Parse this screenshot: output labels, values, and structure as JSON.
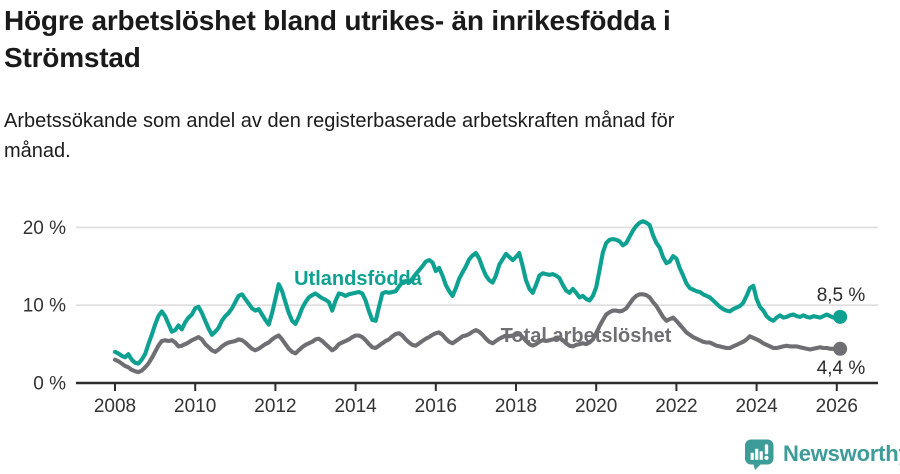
{
  "page": {
    "background": "#ffffff"
  },
  "header": {
    "title": "Högre arbetslöshet bland utrikes- än inrikesfödda i Strömstad",
    "title_lines": [
      "Högre arbetslöshet bland utrikes- än inrikesfödda i",
      "Strömstad"
    ],
    "subtitle": "Arbetssökande som andel av den registerbaserade arbetskraften månad för månad.",
    "subtitle_lines": [
      "Arbetssökande som andel av den registerbaserade arbetskraften månad för",
      "månad."
    ]
  },
  "chart_data": {
    "type": "line",
    "title": "Högre arbetslöshet bland utrikes- än inrikesfödda i Strömstad",
    "subtitle": "Arbetssökande som andel av den registerbaserade arbetskraften månad för månad.",
    "x_unit": "months",
    "x_start": 2008.0,
    "x_step": 0.08333,
    "x_end": 2026.083,
    "xlim": [
      2007.0,
      2027.0
    ],
    "ylim": [
      0,
      24
    ],
    "grid": "horizontal-only",
    "xticks": [
      2008,
      2010,
      2012,
      2014,
      2016,
      2018,
      2020,
      2022,
      2024,
      2026
    ],
    "xtick_labels": [
      "2008",
      "2010",
      "2012",
      "2014",
      "2016",
      "2018",
      "2020",
      "2022",
      "2024",
      "2026"
    ],
    "yticks": [
      0,
      10,
      20
    ],
    "ytick_labels": [
      "0 %",
      "10 %",
      "20 %"
    ],
    "axis_color": "#2d2d2d",
    "grid_color": "#dedede",
    "tick_label_color": "#333333",
    "end_label_color": "#2b2b2b",
    "series": [
      {
        "name": "Utlandsfödda",
        "color": "#0ea192",
        "end_label": "8,5 %",
        "end_value": 8.5,
        "values": [
          4.0,
          3.8,
          3.5,
          3.3,
          3.7,
          3.0,
          2.6,
          2.5,
          3.0,
          3.7,
          5.0,
          6.2,
          7.5,
          8.6,
          9.2,
          8.6,
          7.6,
          6.6,
          6.8,
          7.4,
          6.9,
          7.8,
          8.4,
          8.8,
          9.6,
          9.8,
          9.0,
          8.0,
          7.0,
          6.2,
          6.6,
          7.1,
          8.0,
          8.6,
          9.0,
          9.6,
          10.4,
          11.2,
          11.4,
          10.8,
          10.2,
          9.6,
          9.3,
          9.5,
          8.8,
          8.1,
          7.5,
          9.0,
          10.8,
          12.7,
          11.8,
          10.4,
          9.0,
          8.0,
          7.6,
          8.5,
          9.6,
          10.4,
          11.0,
          11.3,
          11.5,
          11.2,
          10.9,
          10.7,
          10.4,
          9.3,
          10.6,
          11.5,
          11.4,
          11.2,
          11.4,
          11.5,
          11.6,
          11.7,
          11.5,
          10.6,
          9.2,
          8.1,
          8.0,
          9.8,
          11.5,
          11.7,
          11.6,
          11.7,
          11.8,
          12.4,
          13.0,
          13.1,
          12.9,
          13.4,
          14.0,
          14.5,
          15.0,
          15.6,
          15.8,
          15.5,
          14.4,
          14.8,
          13.8,
          12.6,
          11.8,
          11.2,
          12.2,
          13.4,
          14.2,
          15.0,
          15.9,
          16.4,
          16.7,
          16.0,
          14.8,
          13.8,
          13.2,
          12.9,
          13.8,
          15.2,
          15.9,
          16.6,
          16.2,
          15.8,
          16.2,
          16.7,
          15.0,
          13.2,
          12.1,
          11.6,
          12.6,
          13.8,
          14.1,
          14.0,
          13.9,
          14.0,
          13.8,
          13.5,
          12.6,
          11.9,
          11.6,
          12.1,
          11.6,
          11.0,
          11.2,
          10.8,
          10.6,
          11.2,
          12.3,
          14.5,
          16.8,
          18.0,
          18.4,
          18.5,
          18.4,
          18.2,
          17.7,
          18.0,
          18.8,
          19.6,
          20.2,
          20.6,
          20.8,
          20.6,
          20.3,
          19.0,
          18.0,
          17.4,
          16.2,
          15.4,
          15.6,
          16.3,
          16.0,
          14.8,
          13.8,
          12.8,
          12.2,
          12.0,
          11.8,
          11.7,
          11.4,
          11.2,
          11.0,
          10.6,
          10.2,
          9.8,
          9.5,
          9.3,
          9.2,
          9.5,
          9.7,
          9.9,
          10.3,
          11.2,
          12.2,
          12.5,
          10.8,
          9.8,
          9.3,
          8.6,
          8.2,
          8.0,
          8.4,
          8.7,
          8.4,
          8.5,
          8.7,
          8.8,
          8.6,
          8.5,
          8.7,
          8.5,
          8.4,
          8.6,
          8.5,
          8.4,
          8.6,
          8.8,
          8.6,
          8.4,
          8.4,
          8.5
        ]
      },
      {
        "name": "Total arbetslöshet",
        "color": "#6f6f73",
        "end_label": "4,4 %",
        "end_value": 4.4,
        "values": [
          3.0,
          2.8,
          2.5,
          2.2,
          2.0,
          1.7,
          1.5,
          1.4,
          1.6,
          2.0,
          2.5,
          3.2,
          4.0,
          4.8,
          5.4,
          5.5,
          5.4,
          5.5,
          5.2,
          4.7,
          4.8,
          5.0,
          5.2,
          5.5,
          5.7,
          5.9,
          5.6,
          5.0,
          4.6,
          4.2,
          4.0,
          4.3,
          4.7,
          5.0,
          5.2,
          5.3,
          5.4,
          5.6,
          5.5,
          5.2,
          4.8,
          4.4,
          4.2,
          4.4,
          4.7,
          5.0,
          5.2,
          5.6,
          5.9,
          6.1,
          5.6,
          5.0,
          4.4,
          4.0,
          3.8,
          4.2,
          4.6,
          4.9,
          5.1,
          5.3,
          5.6,
          5.7,
          5.4,
          5.0,
          4.6,
          4.2,
          4.5,
          5.0,
          5.2,
          5.4,
          5.6,
          5.9,
          6.1,
          6.1,
          5.9,
          5.5,
          5.0,
          4.6,
          4.5,
          4.8,
          5.1,
          5.4,
          5.6,
          6.0,
          6.3,
          6.4,
          6.1,
          5.6,
          5.2,
          4.9,
          4.8,
          5.1,
          5.4,
          5.7,
          5.9,
          6.2,
          6.4,
          6.5,
          6.2,
          5.7,
          5.3,
          5.1,
          5.4,
          5.7,
          6.0,
          6.1,
          6.3,
          6.6,
          6.8,
          6.6,
          6.2,
          5.7,
          5.3,
          5.1,
          5.4,
          5.7,
          5.9,
          6.1,
          6.0,
          6.1,
          6.2,
          6.3,
          5.9,
          5.4,
          5.0,
          4.8,
          5.0,
          5.3,
          5.5,
          5.4,
          5.5,
          5.6,
          5.7,
          5.8,
          5.5,
          5.1,
          4.8,
          4.7,
          4.9,
          5.0,
          5.1,
          5.0,
          5.2,
          5.6,
          6.4,
          7.3,
          8.1,
          8.8,
          9.1,
          9.3,
          9.3,
          9.2,
          9.3,
          9.6,
          10.2,
          10.8,
          11.2,
          11.4,
          11.4,
          11.3,
          11.0,
          10.4,
          9.9,
          9.2,
          8.5,
          8.0,
          8.2,
          8.4,
          8.0,
          7.5,
          7.0,
          6.5,
          6.2,
          5.9,
          5.7,
          5.5,
          5.3,
          5.2,
          5.2,
          5.0,
          4.8,
          4.7,
          4.6,
          4.5,
          4.5,
          4.7,
          4.9,
          5.1,
          5.3,
          5.6,
          6.0,
          5.8,
          5.6,
          5.4,
          5.1,
          4.9,
          4.7,
          4.5,
          4.5,
          4.6,
          4.7,
          4.8,
          4.7,
          4.7,
          4.7,
          4.6,
          4.5,
          4.4,
          4.3,
          4.4,
          4.5,
          4.6,
          4.5,
          4.5,
          4.4,
          4.4,
          4.4,
          4.4
        ]
      }
    ]
  },
  "footer": {
    "brand": "Newsworthy",
    "brand_color": "#3d9b98"
  }
}
